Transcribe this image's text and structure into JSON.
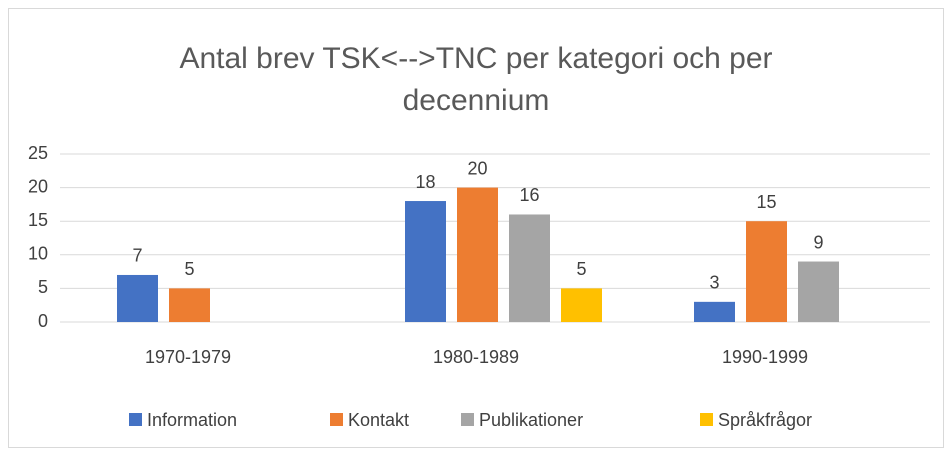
{
  "chart_data": {
    "type": "bar",
    "title": "Antal brev TSK<-->TNC per kategori och per decennium",
    "categories": [
      "1970-1979",
      "1980-1989",
      "1990-1999"
    ],
    "series": [
      {
        "name": "Information",
        "color": "#4472c4",
        "values": [
          7,
          18,
          3
        ]
      },
      {
        "name": "Kontakt",
        "color": "#ed7d31",
        "values": [
          5,
          20,
          15
        ]
      },
      {
        "name": "Publikationer",
        "color": "#a5a5a5",
        "values": [
          null,
          16,
          9
        ]
      },
      {
        "name": "Språkfrågor",
        "color": "#ffc000",
        "values": [
          null,
          5,
          null
        ]
      }
    ],
    "ylim": [
      0,
      25
    ],
    "yticks": [
      0,
      5,
      10,
      15,
      20,
      25
    ],
    "grid": true,
    "legend": "bottom"
  }
}
